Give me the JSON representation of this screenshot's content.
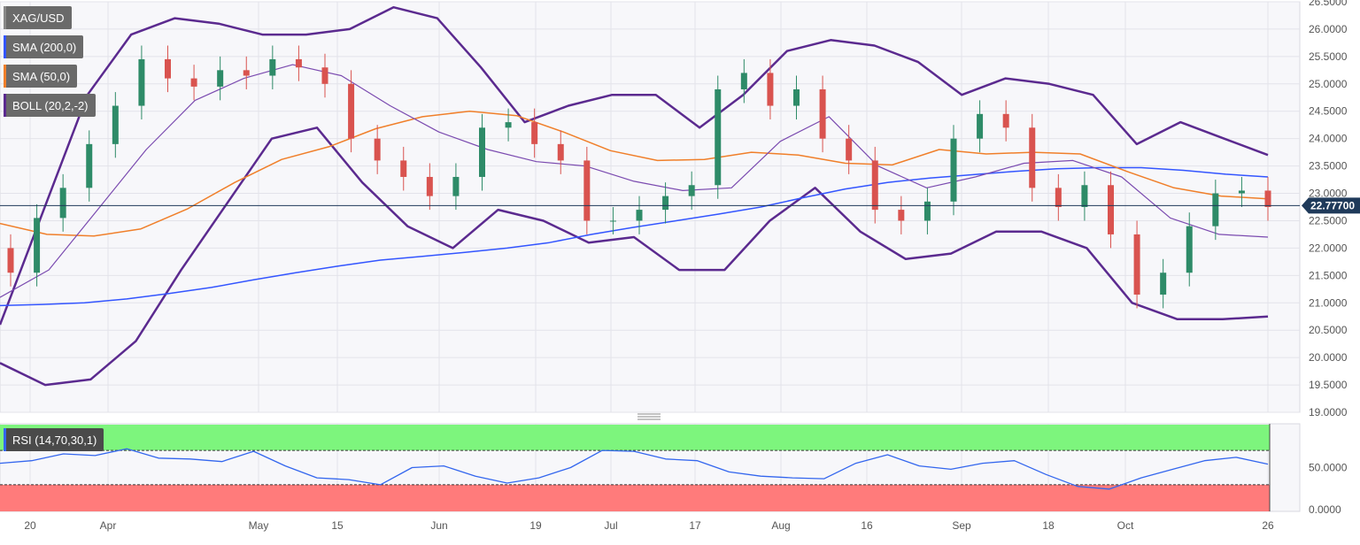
{
  "symbol": "XAG/USD",
  "indicators": {
    "sma200": "SMA (200,0)",
    "sma50": "SMA (50,0)",
    "boll": "BOLL (20,2,-2)",
    "rsi": "RSI (14,70,30,1)"
  },
  "colors": {
    "up": "#2e8b68",
    "down": "#d9534f",
    "sma200": "#3355ff",
    "sma50": "#f07f2a",
    "boll_outer": "#5b2a8f",
    "boll_mid": "#7b4bb0",
    "rsi_line": "#3366ee",
    "rsi_overbought": "#7df57d",
    "rsi_oversold": "#ff7b7b",
    "price_tag": "#1f3a5a"
  },
  "last_price": "22.77700",
  "chart_data": {
    "type": "line",
    "price_axis": {
      "ylim": [
        19.0,
        26.5
      ],
      "ticks": [
        "26.5000",
        "26.0000",
        "25.5000",
        "25.0000",
        "24.5000",
        "24.0000",
        "23.5000",
        "23.0000",
        "22.5000",
        "22.0000",
        "21.5000",
        "21.0000",
        "20.5000",
        "20.0000",
        "19.5000",
        "19.0000"
      ]
    },
    "rsi_axis": {
      "ticks": [
        "50.0000",
        "0.0000"
      ],
      "overbought": 70,
      "oversold": 30
    },
    "x_labels": [
      "20",
      "Apr",
      "May",
      "15",
      "Jun",
      "19",
      "Jul",
      "17",
      "Aug",
      "16",
      "Sep",
      "18",
      "Oct",
      "26"
    ],
    "series": [
      {
        "name": "SMA (200,0)",
        "values": [
          20.95,
          20.97,
          21.0,
          21.07,
          21.17,
          21.28,
          21.42,
          21.55,
          21.67,
          21.78,
          21.85,
          21.92,
          22.0,
          22.1,
          22.25,
          22.38,
          22.5,
          22.62,
          22.75,
          22.92,
          23.08,
          23.2,
          23.28,
          23.34,
          23.4,
          23.45,
          23.47,
          23.47,
          23.42,
          23.35,
          23.3
        ]
      },
      {
        "name": "SMA (50,0)",
        "values": [
          22.45,
          22.25,
          22.22,
          22.35,
          22.72,
          23.2,
          23.62,
          23.85,
          24.18,
          24.4,
          24.5,
          24.42,
          24.12,
          23.78,
          23.6,
          23.62,
          23.75,
          23.7,
          23.55,
          23.52,
          23.8,
          23.72,
          23.75,
          23.72,
          23.4,
          23.1,
          22.95,
          22.9
        ]
      },
      {
        "name": "BOLL (20,2,-2)",
        "values": [
          21.1,
          21.6,
          22.7,
          23.8,
          24.7,
          25.1,
          25.35,
          25.15,
          24.6,
          24.12,
          23.8,
          23.58,
          23.5,
          23.22,
          23.05,
          23.1,
          23.95,
          24.4,
          23.5,
          23.1,
          23.3,
          23.55,
          23.6,
          23.3,
          22.55,
          22.25,
          22.2
        ]
      },
      {
        "name": "RSI (14,70,30,1)",
        "values": [
          55,
          58,
          66,
          64,
          72,
          61,
          60,
          57,
          69,
          52,
          38,
          36,
          30,
          50,
          52,
          40,
          32,
          38,
          50,
          70,
          69,
          60,
          58,
          45,
          40,
          38,
          37,
          55,
          65,
          52,
          48,
          55,
          58,
          42,
          28,
          25,
          38,
          48,
          58,
          62,
          54
        ]
      }
    ]
  }
}
